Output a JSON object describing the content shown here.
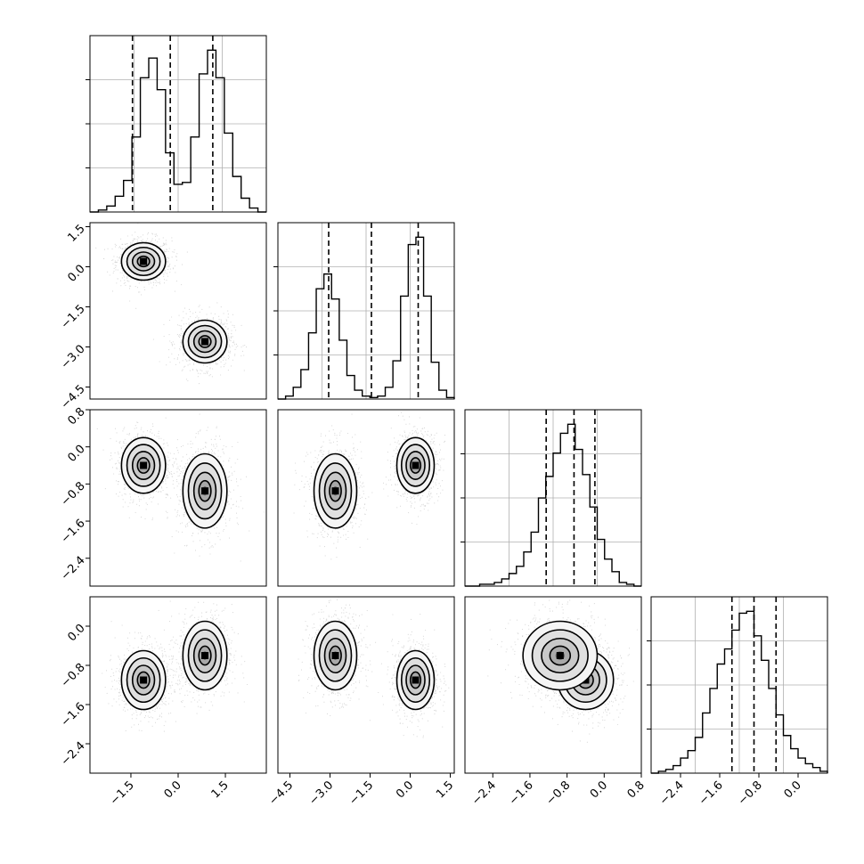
{
  "chart_data": {
    "type": "corner",
    "grid": true,
    "colors": {
      "marks": "#000000",
      "scatter": "#8c8c8c",
      "grid": "#b0b0b0"
    },
    "variables": [
      {
        "range": [
          -2.8,
          2.8
        ],
        "ticks": [
          -1.5,
          0.0,
          1.5
        ],
        "tick_labels": [
          "−1.5",
          "0.0",
          "1.5"
        ]
      },
      {
        "range": [
          -4.95,
          1.65
        ],
        "ticks": [
          -4.5,
          -3.0,
          -1.5,
          0.0,
          1.5
        ],
        "tick_labels": [
          "−4.5",
          "−3.0",
          "−1.5",
          "0.0",
          "1.5"
        ]
      },
      {
        "range": [
          -3.0,
          0.8
        ],
        "ticks": [
          -2.4,
          -1.6,
          -0.8,
          0.0,
          0.8
        ],
        "tick_labels": [
          "−2.4",
          "−1.6",
          "−0.8",
          "0.0",
          "0.8"
        ]
      },
      {
        "range": [
          -3.0,
          0.6
        ],
        "ticks": [
          -2.4,
          -1.6,
          -0.8,
          0.0
        ],
        "tick_labels": [
          "−2.4",
          "−1.6",
          "−0.8",
          "0.0"
        ]
      }
    ],
    "histograms": [
      {
        "counts": [
          0,
          1,
          3,
          8,
          16,
          38,
          68,
          78,
          62,
          30,
          14,
          15,
          38,
          70,
          82,
          68,
          40,
          18,
          7,
          2,
          0
        ],
        "quantiles": [
          -1.45,
          -0.25,
          1.1
        ]
      },
      {
        "counts": [
          0,
          2,
          8,
          20,
          45,
          75,
          85,
          68,
          40,
          16,
          6,
          2,
          1,
          2,
          8,
          26,
          70,
          105,
          110,
          70,
          25,
          6,
          1
        ],
        "quantiles": [
          -3.05,
          -1.45,
          0.3
        ]
      },
      {
        "counts": [
          0,
          0,
          1,
          1,
          2,
          4,
          7,
          11,
          19,
          30,
          49,
          61,
          74,
          85,
          90,
          76,
          62,
          44,
          26,
          15,
          8,
          2,
          1,
          0
        ],
        "quantiles": [
          -1.25,
          -0.65,
          -0.2
        ]
      },
      {
        "counts": [
          0,
          1,
          2,
          4,
          8,
          12,
          19,
          32,
          45,
          58,
          66,
          76,
          85,
          86,
          73,
          60,
          45,
          31,
          20,
          13,
          8,
          5,
          3,
          1
        ],
        "quantiles": [
          -1.35,
          -0.9,
          -0.45
        ]
      }
    ],
    "clusters": [
      {
        "means": [
          -1.1,
          0.2,
          -0.4,
          -1.1
        ],
        "sd": [
          0.35,
          0.35,
          0.3,
          0.3
        ]
      },
      {
        "means": [
          0.85,
          -2.8,
          -0.95,
          -0.6
        ],
        "sd": [
          0.35,
          0.4,
          0.4,
          0.35
        ]
      }
    ]
  }
}
